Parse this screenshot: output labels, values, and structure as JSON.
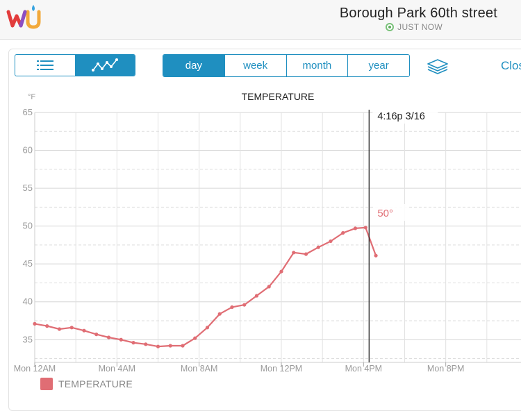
{
  "header": {
    "brand": "wu-logo",
    "station": "Borough Park 60th street",
    "updated": "JUST NOW"
  },
  "view_toggle": {
    "icons": [
      "list-icon",
      "line-chart-icon"
    ],
    "active": "line-chart-icon"
  },
  "ranges": {
    "items": [
      "day",
      "week",
      "month",
      "year"
    ],
    "active": "day"
  },
  "layers_icon": "layers-icon",
  "close_label": "Clos",
  "colors": {
    "accent": "#1f8fc0",
    "series": "#e06d74",
    "cursor": "#222222"
  },
  "chart_data": {
    "type": "line",
    "title": "TEMPERATURE",
    "ylabel": "°F",
    "xlabel": "",
    "ylim": [
      32,
      65
    ],
    "yticks": [
      35,
      40,
      45,
      50,
      55,
      60,
      65
    ],
    "xlim": [
      0,
      24
    ],
    "xticks": [
      {
        "x": 0,
        "label": "Mon 12AM"
      },
      {
        "x": 4,
        "label": "Mon 4AM"
      },
      {
        "x": 8,
        "label": "Mon 8AM"
      },
      {
        "x": 12,
        "label": "Mon 12PM"
      },
      {
        "x": 16,
        "label": "Mon 4PM"
      },
      {
        "x": 20,
        "label": "Mon 8PM"
      }
    ],
    "grid": true,
    "legend": "bottom-left",
    "series": [
      {
        "name": "TEMPERATURE",
        "x": [
          0,
          0.6,
          1.2,
          1.8,
          2.4,
          3.0,
          3.6,
          4.2,
          4.8,
          5.4,
          6.0,
          6.6,
          7.2,
          7.8,
          8.4,
          9.0,
          9.6,
          10.2,
          10.8,
          11.4,
          12.0,
          12.6,
          13.2,
          13.8,
          14.4,
          15.0,
          15.6,
          16.1,
          16.6
        ],
        "y": [
          37.1,
          36.8,
          36.4,
          36.6,
          36.2,
          35.7,
          35.3,
          35.0,
          34.6,
          34.4,
          34.1,
          34.2,
          34.2,
          35.2,
          36.6,
          38.4,
          39.3,
          39.6,
          40.8,
          42.0,
          44.0,
          46.5,
          46.3,
          47.2,
          48.0,
          49.1,
          49.7,
          49.8,
          46.1
        ]
      }
    ],
    "cursor": {
      "x": 16.27,
      "label": "4:16p 3/16",
      "value_label": "50°"
    }
  }
}
